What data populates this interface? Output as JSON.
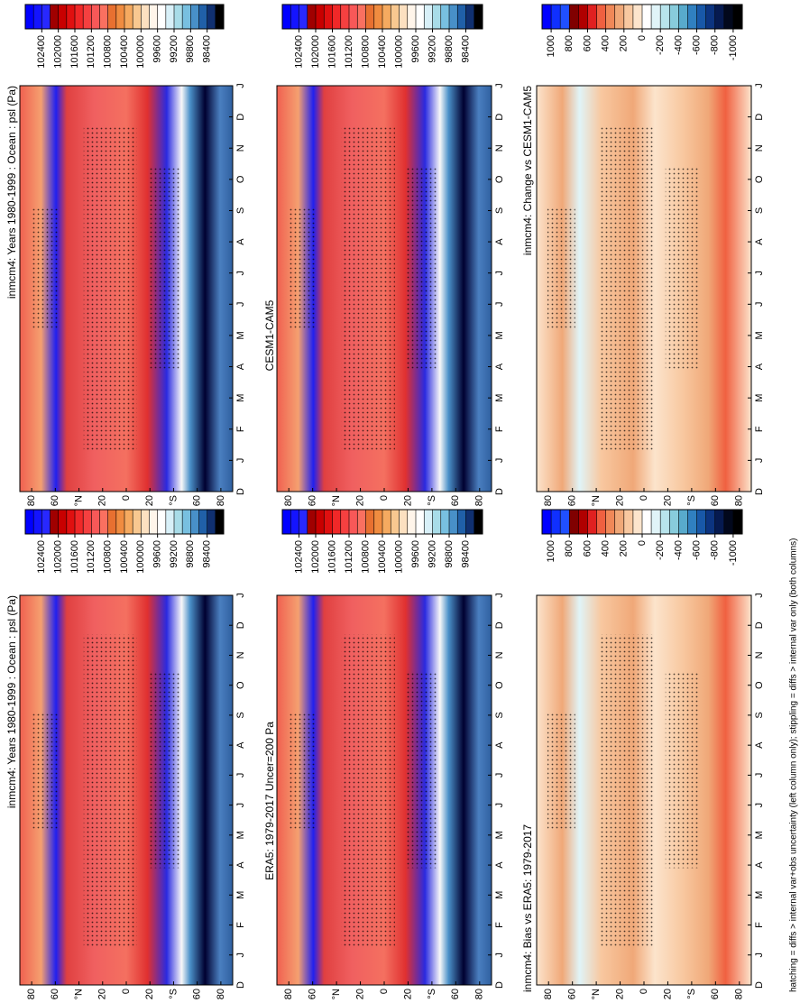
{
  "chart_data": [
    {
      "type": "contour",
      "title": "inmcm4: Years 1980-1999 : Ocean : psl (Pa)",
      "categories": [
        "D",
        "J",
        "F",
        "M",
        "A",
        "M",
        "J",
        "J",
        "A",
        "S",
        "O",
        "N",
        "D",
        "J"
      ],
      "ylim": [
        90,
        -90
      ],
      "yticks": [
        {
          "value": 80,
          "label": "80"
        },
        {
          "value": 60,
          "label": "60"
        },
        {
          "value": 40,
          "label": "°N"
        },
        {
          "value": 20,
          "label": "20"
        },
        0,
        {
          "value": -20,
          "label": "20"
        },
        {
          "value": -40,
          "label": "°S"
        },
        {
          "value": -60,
          "label": "60"
        },
        {
          "value": -80,
          "label": "80"
        }
      ],
      "colorbar": {
        "clim": [
          102800,
          98000
        ],
        "ticks": [
          102400,
          102000,
          101600,
          101200,
          100800,
          100400,
          100000,
          99600,
          99200,
          98800,
          98400
        ],
        "colors": [
          "#0000ff",
          "#1414ff",
          "#2828ff",
          "#a00000",
          "#c80000",
          "#e01010",
          "#f02828",
          "#f54040",
          "#f85858",
          "#fa7060",
          "#e87030",
          "#f08c40",
          "#f5aa60",
          "#f8c890",
          "#fce0c0",
          "#fff5ea",
          "#ffffff",
          "#d8f0f8",
          "#a8dce8",
          "#78c0e0",
          "#4890c8",
          "#2060a8",
          "#103070",
          "#000000"
        ]
      }
    },
    {
      "type": "contour",
      "title": "ERA5: 1979-2017 Uncer=200 Pa",
      "categories": [
        "D",
        "J",
        "F",
        "M",
        "A",
        "M",
        "J",
        "J",
        "A",
        "S",
        "O",
        "N",
        "D",
        "J"
      ],
      "ylim": [
        90,
        -90
      ],
      "yticks": [
        {
          "value": 80,
          "label": "80"
        },
        {
          "value": 60,
          "label": "60"
        },
        {
          "value": 40,
          "label": "°N"
        },
        {
          "value": 20,
          "label": "20"
        },
        0,
        {
          "value": -20,
          "label": "20"
        },
        {
          "value": -40,
          "label": "°S"
        },
        {
          "value": -60,
          "label": "60"
        },
        {
          "value": -80,
          "label": "80"
        }
      ],
      "colorbar": {
        "clim": [
          102800,
          98000
        ],
        "ticks": [
          102400,
          102000,
          101600,
          101200,
          100800,
          100400,
          100000,
          99600,
          99200,
          98800,
          98400
        ],
        "colors": [
          "#0000ff",
          "#1414ff",
          "#2828ff",
          "#a00000",
          "#c80000",
          "#e01010",
          "#f02828",
          "#f54040",
          "#f85858",
          "#fa7060",
          "#e87030",
          "#f08c40",
          "#f5aa60",
          "#f8c890",
          "#fce0c0",
          "#fff5ea",
          "#ffffff",
          "#d8f0f8",
          "#a8dce8",
          "#78c0e0",
          "#4890c8",
          "#2060a8",
          "#103070",
          "#000000"
        ]
      }
    },
    {
      "type": "contour",
      "title": "inmcm4: Bias vs ERA5: 1979-2017",
      "categories": [
        "D",
        "J",
        "F",
        "M",
        "A",
        "M",
        "J",
        "J",
        "A",
        "S",
        "O",
        "N",
        "D",
        "J"
      ],
      "ylim": [
        90,
        -90
      ],
      "yticks": [
        {
          "value": 80,
          "label": "80"
        },
        {
          "value": 60,
          "label": "60"
        },
        {
          "value": 40,
          "label": "°N"
        },
        {
          "value": 20,
          "label": "20"
        },
        0,
        {
          "value": -20,
          "label": "20"
        },
        {
          "value": -40,
          "label": "°S"
        },
        {
          "value": -60,
          "label": "60"
        },
        {
          "value": -80,
          "label": "80"
        }
      ],
      "colorbar": {
        "clim": [
          1100,
          -1100
        ],
        "ticks": [
          1000,
          800,
          600,
          400,
          200,
          0,
          -200,
          -400,
          -600,
          -800,
          -1000
        ],
        "colors": [
          "#0000ff",
          "#1030ff",
          "#2050ff",
          "#800000",
          "#b00000",
          "#e02020",
          "#f06040",
          "#f08858",
          "#f0a878",
          "#f8c8a0",
          "#fce4cc",
          "#ffffff",
          "#e0f4f8",
          "#b8e4ec",
          "#88ccdc",
          "#58aacc",
          "#3080c0",
          "#1858a8",
          "#0c3480",
          "#061a50",
          "#02081c",
          "#000000"
        ]
      }
    },
    {
      "type": "contour",
      "title": "inmcm4: Years 1980-1999 : Ocean : psl (Pa)",
      "categories": [
        "D",
        "J",
        "F",
        "M",
        "A",
        "M",
        "J",
        "J",
        "A",
        "S",
        "O",
        "N",
        "D",
        "J"
      ],
      "ylim": [
        90,
        -90
      ],
      "yticks": [
        {
          "value": 80,
          "label": "80"
        },
        {
          "value": 60,
          "label": "60"
        },
        {
          "value": 40,
          "label": "°N"
        },
        {
          "value": 20,
          "label": "20"
        },
        0,
        {
          "value": -20,
          "label": "20"
        },
        {
          "value": -40,
          "label": "°S"
        },
        {
          "value": -60,
          "label": "60"
        },
        {
          "value": -80,
          "label": "80"
        }
      ],
      "colorbar": {
        "clim": [
          102800,
          98000
        ],
        "ticks": [
          102400,
          102000,
          101600,
          101200,
          100800,
          100400,
          100000,
          99600,
          99200,
          98800,
          98400
        ],
        "colors": [
          "#0000ff",
          "#1414ff",
          "#2828ff",
          "#a00000",
          "#c80000",
          "#e01010",
          "#f02828",
          "#f54040",
          "#f85858",
          "#fa7060",
          "#e87030",
          "#f08c40",
          "#f5aa60",
          "#f8c890",
          "#fce0c0",
          "#fff5ea",
          "#ffffff",
          "#d8f0f8",
          "#a8dce8",
          "#78c0e0",
          "#4890c8",
          "#2060a8",
          "#103070",
          "#000000"
        ]
      }
    },
    {
      "type": "contour",
      "title": "CESM1-CAM5",
      "categories": [
        "D",
        "J",
        "F",
        "M",
        "A",
        "M",
        "J",
        "J",
        "A",
        "S",
        "O",
        "N",
        "D",
        "J"
      ],
      "ylim": [
        90,
        -90
      ],
      "yticks": [
        {
          "value": 80,
          "label": "80"
        },
        {
          "value": 60,
          "label": "60"
        },
        {
          "value": 40,
          "label": "°N"
        },
        {
          "value": 20,
          "label": "20"
        },
        0,
        {
          "value": -20,
          "label": "20"
        },
        {
          "value": -40,
          "label": "°S"
        },
        {
          "value": -60,
          "label": "60"
        },
        {
          "value": -80,
          "label": "80"
        }
      ],
      "colorbar": {
        "clim": [
          102800,
          98000
        ],
        "ticks": [
          102400,
          102000,
          101600,
          101200,
          100800,
          100400,
          100000,
          99600,
          99200,
          98800,
          98400
        ],
        "colors": [
          "#0000ff",
          "#1414ff",
          "#2828ff",
          "#a00000",
          "#c80000",
          "#e01010",
          "#f02828",
          "#f54040",
          "#f85858",
          "#fa7060",
          "#e87030",
          "#f08c40",
          "#f5aa60",
          "#f8c890",
          "#fce0c0",
          "#fff5ea",
          "#ffffff",
          "#d8f0f8",
          "#a8dce8",
          "#78c0e0",
          "#4890c8",
          "#2060a8",
          "#103070",
          "#000000"
        ]
      }
    },
    {
      "type": "contour",
      "title": "inmcm4: Change vs CESM1-CAM5",
      "categories": [
        "D",
        "J",
        "F",
        "M",
        "A",
        "M",
        "J",
        "J",
        "A",
        "S",
        "O",
        "N",
        "D",
        "J"
      ],
      "ylim": [
        90,
        -90
      ],
      "yticks": [
        {
          "value": 80,
          "label": "80"
        },
        {
          "value": 60,
          "label": "60"
        },
        {
          "value": 40,
          "label": "°N"
        },
        {
          "value": 20,
          "label": "20"
        },
        0,
        {
          "value": -20,
          "label": "20"
        },
        {
          "value": -40,
          "label": "°S"
        },
        {
          "value": -60,
          "label": "60"
        },
        {
          "value": -80,
          "label": "80"
        }
      ],
      "colorbar": {
        "clim": [
          1100,
          -1100
        ],
        "ticks": [
          1000,
          800,
          600,
          400,
          200,
          0,
          -200,
          -400,
          -600,
          -800,
          -1000
        ],
        "colors": [
          "#0000ff",
          "#1030ff",
          "#2050ff",
          "#800000",
          "#b00000",
          "#e02020",
          "#f06040",
          "#f08858",
          "#f0a878",
          "#f8c8a0",
          "#fce4cc",
          "#ffffff",
          "#e0f4f8",
          "#b8e4ec",
          "#88ccdc",
          "#58aacc",
          "#3080c0",
          "#1858a8",
          "#0c3480",
          "#061a50",
          "#02081c",
          "#000000"
        ]
      }
    }
  ],
  "footnote": "hatching = diffs > internal var+obs uncertainty (left column only); stippling = diffs > internal var only (both columns)"
}
